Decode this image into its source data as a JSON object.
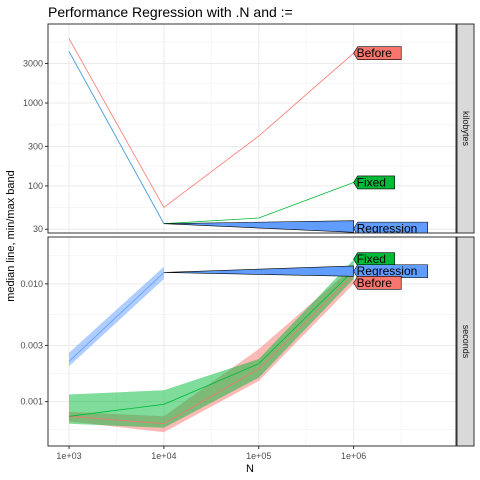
{
  "chart_data": {
    "type": "line",
    "title": "Performance Regression with .N and :=",
    "xlabel": "N",
    "ylabel": "median line, min/max band",
    "x_scale": "log10",
    "x_ticks": [
      1000,
      10000,
      100000,
      1000000
    ],
    "x_tick_labels": [
      "1e+03",
      "1e+04",
      "1e+05",
      "1e+06"
    ],
    "xlim": [
      600,
      12000000
    ],
    "grid": true,
    "legend": "none (direct labels)",
    "colors": {
      "Before": "#F8766D",
      "Fixed": "#00BA38",
      "Regression": "#619CFF"
    },
    "panels": [
      {
        "strip": "kilobytes",
        "y_scale": "log10",
        "ylim": [
          27,
          9000
        ],
        "y_ticks": [
          30,
          100,
          300,
          1000,
          3000
        ],
        "y_tick_labels": [
          "30",
          "100",
          "300",
          "1000",
          "3000"
        ],
        "series": [
          {
            "name": "Before",
            "x": [
              1000,
              10000,
              100000,
              1000000
            ],
            "median": [
              6000,
              55,
              400,
              4000
            ]
          },
          {
            "name": "Fixed",
            "x": [
              1000,
              10000,
              100000,
              1000000
            ],
            "median": [
              4200,
              35,
              41,
              110
            ]
          },
          {
            "name": "Regression",
            "x": [
              1000,
              10000
            ],
            "median": [
              4200,
              35
            ]
          }
        ],
        "labels": [
          {
            "text": "Before",
            "series": "Before",
            "x": 1000000,
            "y": 4000
          },
          {
            "text": "Fixed",
            "series": "Fixed",
            "x": 1000000,
            "y": 110
          },
          {
            "text": "Regression",
            "series": "Regression",
            "x": 1000000,
            "y": 30.5,
            "from": [
              10000,
              35
            ],
            "to_y": [
              27.5,
              38
            ]
          }
        ]
      },
      {
        "strip": "seconds",
        "y_scale": "log10",
        "ylim": [
          0.00042,
          0.025
        ],
        "y_ticks": [
          0.001,
          0.003,
          0.01
        ],
        "y_tick_labels": [
          "0.001",
          "0.003",
          "0.010"
        ],
        "series": [
          {
            "name": "Before",
            "x": [
              1000,
              10000,
              100000,
              1000000
            ],
            "median": [
              0.00075,
              0.00065,
              0.0019,
              0.012
            ],
            "min": [
              0.00068,
              0.00055,
              0.0015,
              0.01
            ],
            "max": [
              0.00082,
              0.00075,
              0.0028,
              0.014
            ]
          },
          {
            "name": "Fixed",
            "x": [
              1000,
              10000,
              100000,
              1000000
            ],
            "median": [
              0.00075,
              0.00095,
              0.0021,
              0.013
            ],
            "min": [
              0.00065,
              0.0006,
              0.0016,
              0.011
            ],
            "max": [
              0.00115,
              0.00125,
              0.0023,
              0.016
            ]
          },
          {
            "name": "Regression",
            "x": [
              1000,
              10000
            ],
            "median": [
              0.0022,
              0.0125
            ],
            "min": [
              0.002,
              0.011
            ],
            "max": [
              0.0026,
              0.014
            ]
          }
        ],
        "labels": [
          {
            "text": "Fixed",
            "series": "Fixed",
            "x": 1000000,
            "y": 0.0162
          },
          {
            "text": "Regression",
            "series": "Regression",
            "x": 1000000,
            "y": 0.0128,
            "from": [
              10000,
              0.0125
            ],
            "to_y": [
              0.0116,
              0.0142
            ]
          },
          {
            "text": "Before",
            "series": "Before",
            "x": 1000000,
            "y": 0.0102
          }
        ]
      }
    ]
  }
}
